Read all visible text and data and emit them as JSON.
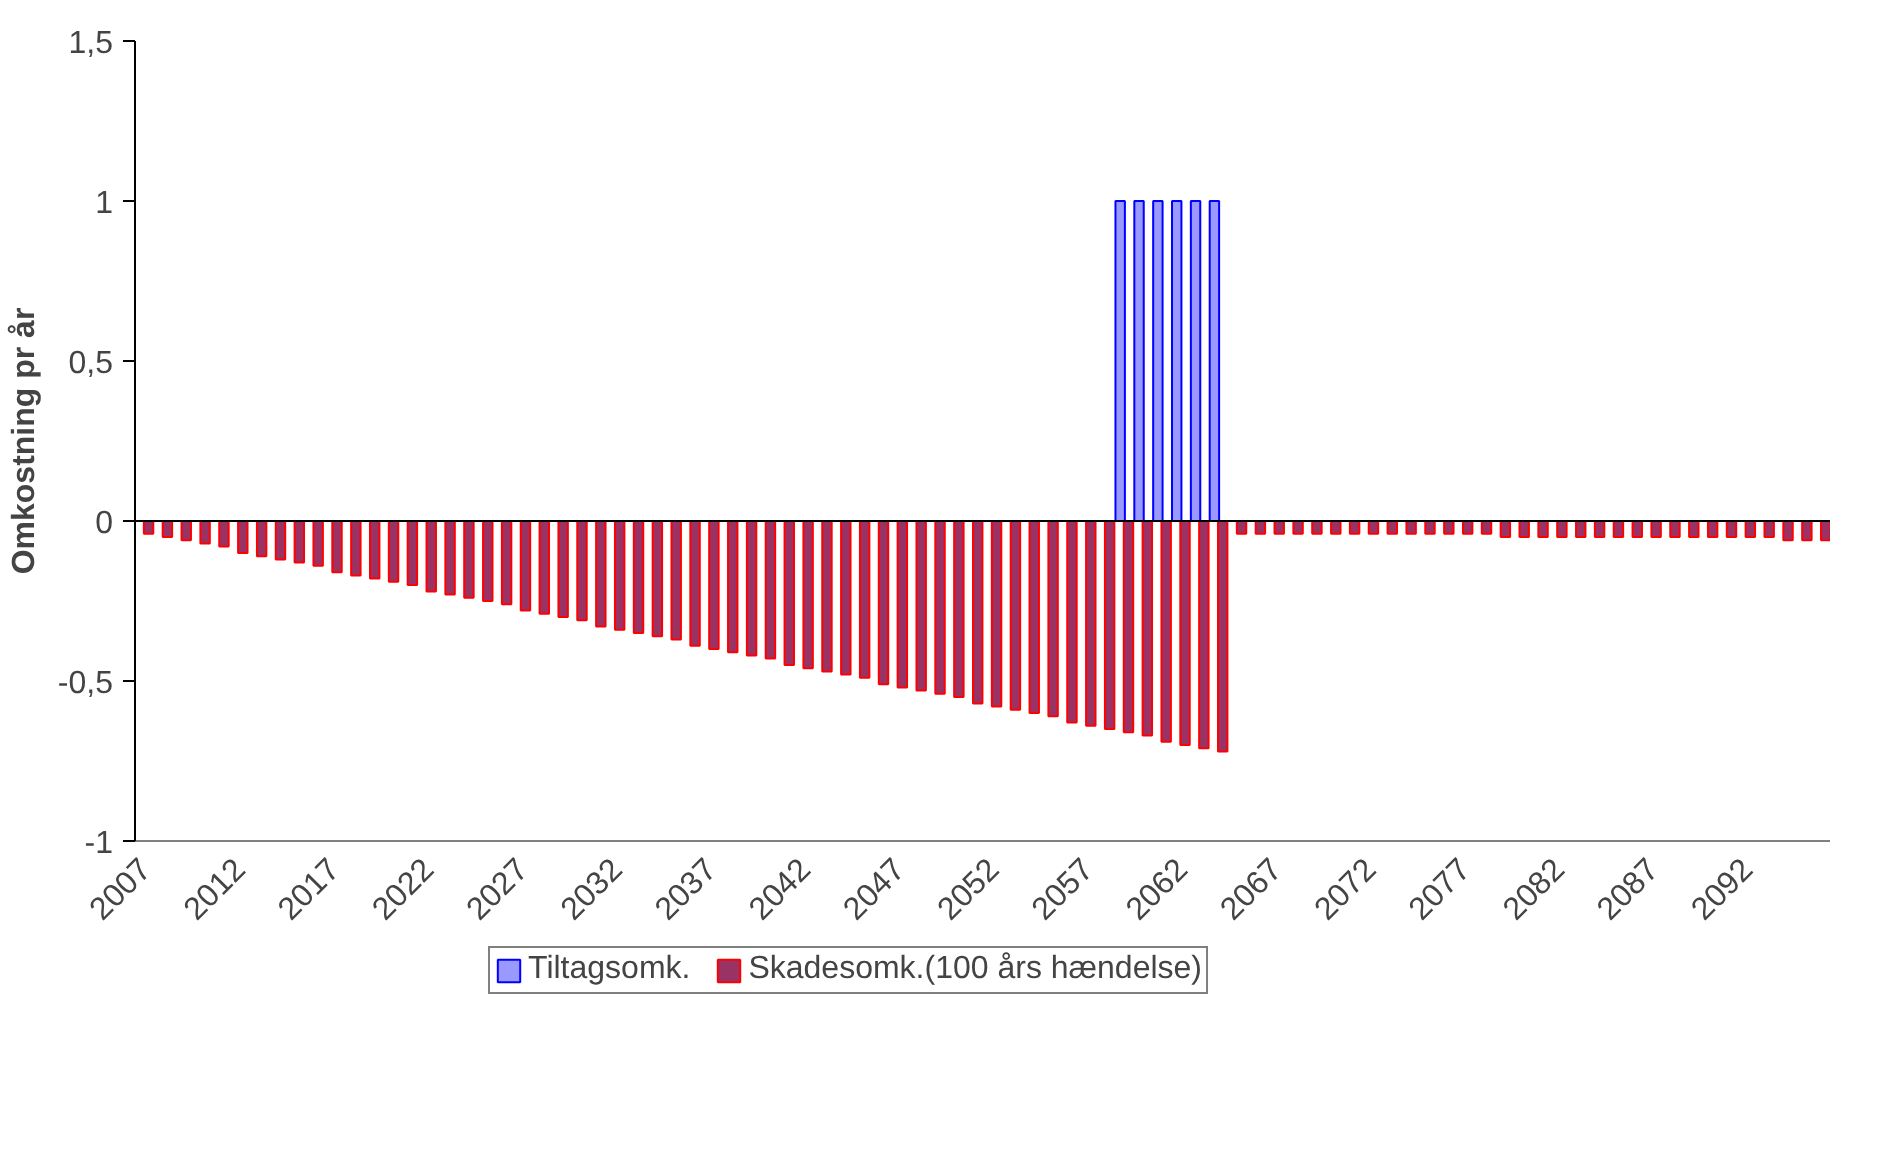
{
  "chart_data": {
    "type": "bar",
    "ylabel": "Omkostning pr år",
    "categories": [
      "2007",
      null,
      null,
      null,
      null,
      "2012",
      null,
      null,
      null,
      null,
      "2017",
      null,
      null,
      null,
      null,
      "2022",
      null,
      null,
      null,
      null,
      "2027",
      null,
      null,
      null,
      null,
      "2032",
      null,
      null,
      null,
      null,
      "2037",
      null,
      null,
      null,
      null,
      "2042",
      null,
      null,
      null,
      null,
      "2047",
      null,
      null,
      null,
      null,
      "2052",
      null,
      null,
      null,
      null,
      "2057",
      null,
      null,
      null,
      null,
      "2062",
      null,
      null,
      null,
      null,
      "2067",
      null,
      null,
      null,
      null,
      "2072",
      null,
      null,
      null,
      null,
      "2077",
      null,
      null,
      null,
      null,
      "2082",
      null,
      null,
      null,
      null,
      "2087",
      null,
      null,
      null,
      null,
      "2092",
      null,
      null,
      null,
      null
    ],
    "series": [
      {
        "name": "Tiltagsomk.",
        "color": "#9999ff",
        "values": [
          null,
          null,
          null,
          null,
          null,
          null,
          null,
          null,
          null,
          null,
          null,
          null,
          null,
          null,
          null,
          null,
          null,
          null,
          null,
          null,
          null,
          null,
          null,
          null,
          null,
          null,
          null,
          null,
          null,
          null,
          null,
          null,
          null,
          null,
          null,
          null,
          null,
          null,
          null,
          null,
          null,
          null,
          null,
          null,
          null,
          null,
          null,
          null,
          null,
          null,
          null,
          null,
          1,
          1,
          1,
          1,
          1,
          1,
          null,
          null,
          null,
          null,
          null,
          null,
          null,
          null,
          null,
          null,
          null,
          null,
          null,
          null,
          null,
          null,
          null,
          null,
          null,
          null,
          null,
          null,
          null,
          null,
          null,
          null,
          null,
          null,
          null,
          null,
          null,
          null
        ]
      },
      {
        "name": "Skadesomk.(100 års hændelse)",
        "color": "#993366",
        "values": [
          -0.04,
          -0.05,
          -0.06,
          -0.07,
          -0.08,
          -0.1,
          -0.11,
          -0.12,
          -0.13,
          -0.14,
          -0.16,
          -0.17,
          -0.18,
          -0.19,
          -0.2,
          -0.22,
          -0.23,
          -0.24,
          -0.25,
          -0.26,
          -0.28,
          -0.29,
          -0.3,
          -0.31,
          -0.33,
          -0.34,
          -0.35,
          -0.36,
          -0.37,
          -0.39,
          -0.4,
          -0.41,
          -0.42,
          -0.43,
          -0.45,
          -0.46,
          -0.47,
          -0.48,
          -0.49,
          -0.51,
          -0.52,
          -0.53,
          -0.54,
          -0.55,
          -0.57,
          -0.58,
          -0.59,
          -0.6,
          -0.61,
          -0.63,
          -0.64,
          -0.65,
          -0.66,
          -0.67,
          -0.69,
          -0.7,
          -0.71,
          -0.72,
          -0.04,
          -0.04,
          -0.04,
          -0.04,
          -0.04,
          -0.04,
          -0.04,
          -0.04,
          -0.04,
          -0.04,
          -0.04,
          -0.04,
          -0.04,
          -0.04,
          -0.05,
          -0.05,
          -0.05,
          -0.05,
          -0.05,
          -0.05,
          -0.05,
          -0.05,
          -0.05,
          -0.05,
          -0.05,
          -0.05,
          -0.05,
          -0.05,
          -0.05,
          -0.06,
          -0.06,
          -0.06
        ]
      }
    ],
    "ylim": [
      -1,
      1.5
    ],
    "yticks": [
      -1,
      {
        "value": -0.5,
        "label": "-0,5"
      },
      0,
      {
        "value": 0.5,
        "label": "0,5"
      },
      1,
      {
        "value": 1.5,
        "label": "1,5"
      }
    ],
    "legend": "bottom"
  }
}
